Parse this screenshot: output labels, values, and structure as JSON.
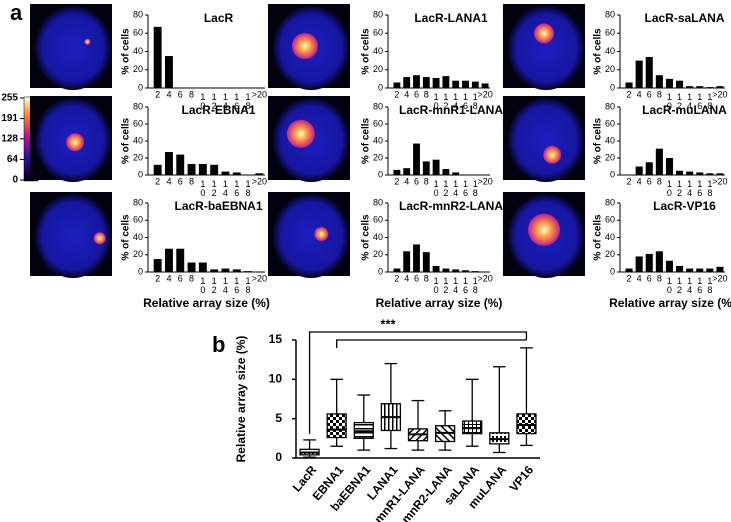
{
  "panel_labels": [
    "a",
    "b"
  ],
  "colorbar": {
    "ticks": [
      255,
      191,
      128,
      64,
      0
    ]
  },
  "chart_data": [
    {
      "type": "bar",
      "title": "LacR",
      "ylabel": "% of cells",
      "categories": [
        "2",
        "4",
        "6",
        "8",
        "10",
        "12",
        "14",
        "16",
        "18",
        ">20"
      ],
      "values": [
        67,
        35,
        0,
        0,
        0,
        0,
        0,
        0,
        0,
        0
      ],
      "color": "#000000",
      "ylim": [
        0,
        80
      ],
      "yticks": [
        0,
        20,
        40,
        60,
        80
      ]
    },
    {
      "type": "bar",
      "title": "LacR-LANA1",
      "ylabel": "% of cells",
      "categories": [
        "2",
        "4",
        "6",
        "8",
        "10",
        "12",
        "14",
        "16",
        "18",
        ">20"
      ],
      "values": [
        6,
        12,
        14,
        12,
        11,
        13,
        8,
        8,
        7,
        5
      ],
      "color": "#000000",
      "ylim": [
        0,
        80
      ],
      "yticks": [
        0,
        20,
        40,
        60,
        80
      ]
    },
    {
      "type": "bar",
      "title": "LacR-saLANA",
      "ylabel": "% of cells",
      "categories": [
        "2",
        "4",
        "6",
        "8",
        "10",
        "12",
        "14",
        "16",
        "18",
        ">20"
      ],
      "values": [
        6,
        30,
        34,
        14,
        10,
        8,
        2,
        2,
        1,
        2
      ],
      "color": "#000000",
      "ylim": [
        0,
        80
      ],
      "yticks": [
        0,
        20,
        40,
        60,
        80
      ]
    },
    {
      "type": "bar",
      "title": "LacR-EBNA1",
      "ylabel": "% of cells",
      "categories": [
        "2",
        "4",
        "6",
        "8",
        "10",
        "12",
        "14",
        "16",
        "18",
        ">20"
      ],
      "values": [
        12,
        27,
        24,
        13,
        13,
        12,
        4,
        3,
        0,
        2
      ],
      "color": "#000000",
      "ylim": [
        0,
        80
      ],
      "yticks": [
        0,
        20,
        40,
        60,
        80
      ]
    },
    {
      "type": "bar",
      "title": "LacR-mnR1-LANA",
      "ylabel": "% of cells",
      "categories": [
        "2",
        "4",
        "6",
        "8",
        "10",
        "12",
        "14",
        "16",
        "18",
        ">20"
      ],
      "values": [
        6,
        8,
        37,
        16,
        18,
        7,
        3,
        0,
        0,
        0
      ],
      "color": "#000000",
      "ylim": [
        0,
        80
      ],
      "yticks": [
        0,
        20,
        40,
        60,
        80
      ]
    },
    {
      "type": "bar",
      "title": "LacR-muLANA",
      "ylabel": "% of cells",
      "categories": [
        "2",
        "4",
        "6",
        "8",
        "10",
        "12",
        "14",
        "16",
        "18",
        ">20"
      ],
      "values": [
        0,
        10,
        15,
        31,
        20,
        5,
        4,
        3,
        2,
        2
      ],
      "color": "#000000",
      "ylim": [
        0,
        80
      ],
      "yticks": [
        0,
        20,
        40,
        60,
        80
      ]
    },
    {
      "type": "bar",
      "title": "LacR-baEBNA1",
      "ylabel": "% of cells",
      "xlabel": "Relative array size (%)",
      "categories": [
        "2",
        "4",
        "6",
        "8",
        "10",
        "12",
        "14",
        "16",
        "18",
        ">20"
      ],
      "values": [
        15,
        27,
        27,
        11,
        11,
        3,
        4,
        3,
        1,
        0
      ],
      "color": "#000000",
      "ylim": [
        0,
        80
      ],
      "yticks": [
        0,
        20,
        40,
        60,
        80
      ]
    },
    {
      "type": "bar",
      "title": "LacR-mnR2-LANA",
      "ylabel": "% of cells",
      "xlabel": "Relative array size (%)",
      "categories": [
        "2",
        "4",
        "6",
        "8",
        "10",
        "12",
        "14",
        "16",
        "18",
        ">20"
      ],
      "values": [
        4,
        24,
        32,
        23,
        7,
        4,
        3,
        2,
        1,
        0
      ],
      "color": "#000000",
      "ylim": [
        0,
        80
      ],
      "yticks": [
        0,
        20,
        40,
        60,
        80
      ]
    },
    {
      "type": "bar",
      "title": "LacR-VP16",
      "ylabel": "% of cells",
      "xlabel": "Relative array size (%)",
      "categories": [
        "2",
        "4",
        "6",
        "8",
        "10",
        "12",
        "14",
        "16",
        "18",
        ">20"
      ],
      "values": [
        4,
        18,
        21,
        24,
        13,
        7,
        4,
        4,
        4,
        6
      ],
      "color": "#000000",
      "ylim": [
        0,
        80
      ],
      "yticks": [
        0,
        20,
        40,
        60,
        80
      ]
    },
    {
      "type": "box",
      "ylabel": "Relative array size (%)",
      "annotation": "***",
      "categories": [
        "LacR",
        "EBNA1",
        "baEBNA1",
        "LANA1",
        "mnR1-LANA",
        "mnR2-LANA",
        "saLANA",
        "muLANA",
        "VP16"
      ],
      "whisker_low": [
        0.1,
        1.5,
        1,
        1.2,
        1,
        1,
        1.5,
        0.7,
        1.6
      ],
      "q1": [
        0.4,
        2.6,
        2.5,
        3.5,
        2.2,
        2.1,
        3.1,
        1.8,
        3.1
      ],
      "median": [
        0.7,
        3.6,
        3.4,
        5.2,
        3,
        3.2,
        3.8,
        2.4,
        4.2
      ],
      "q3": [
        1.1,
        5.6,
        4.5,
        6.9,
        3.7,
        4.1,
        4.7,
        3.2,
        5.6
      ],
      "whisker_high": [
        2.3,
        10,
        8,
        12,
        7.3,
        6,
        10,
        11.6,
        14
      ],
      "ylim": [
        0,
        15
      ],
      "yticks": [
        0,
        5,
        10,
        15
      ]
    }
  ]
}
